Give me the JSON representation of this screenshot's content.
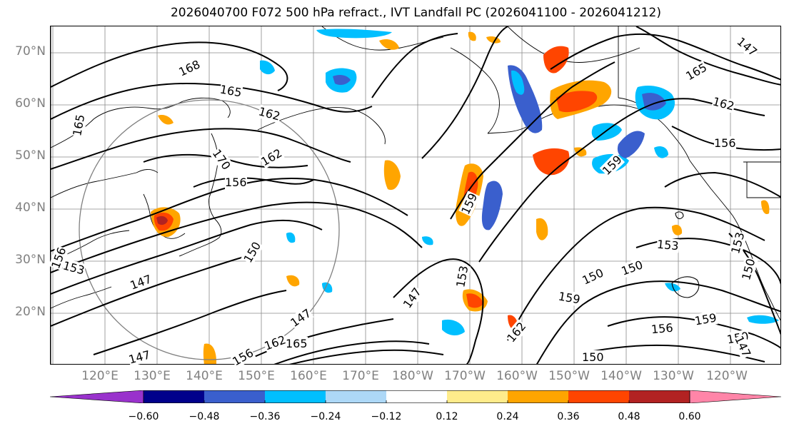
{
  "title": "2026040700 F072 500 hPa refract., IVT Landfall PC (2026041100 - 2026041212)",
  "lat_labels": [
    "70°N",
    "60°N",
    "50°N",
    "40°N",
    "30°N",
    "20°N"
  ],
  "lon_labels": [
    "120°E",
    "130°E",
    "140°E",
    "150°E",
    "160°E",
    "170°E",
    "180°W",
    "170°W",
    "160°W",
    "150°W",
    "140°W",
    "130°W",
    "120°W"
  ],
  "colorbar": {
    "colors": [
      "#9932cc",
      "#00008b",
      "#3a5fcd",
      "#00bfff",
      "#add8f7",
      "#ffffff",
      "#ffec8b",
      "#ffa500",
      "#ff4500",
      "#b22222",
      "#ff85a8"
    ],
    "tick_labels": [
      "−0.60",
      "−0.48",
      "−0.36",
      "−0.24",
      "−0.12",
      "0.12",
      "0.24",
      "0.36",
      "0.48",
      "0.60"
    ]
  },
  "contour_labels": [
    "168",
    "165",
    "162",
    "170",
    "162",
    "156",
    "165",
    "156",
    "153",
    "150",
    "147",
    "147",
    "147",
    "165",
    "162",
    "156",
    "153",
    "147",
    "162",
    "150",
    "159",
    "165",
    "162",
    "156",
    "159",
    "153",
    "150",
    "159",
    "156",
    "159",
    "150",
    "150",
    "147",
    "153",
    "150",
    "147"
  ]
}
